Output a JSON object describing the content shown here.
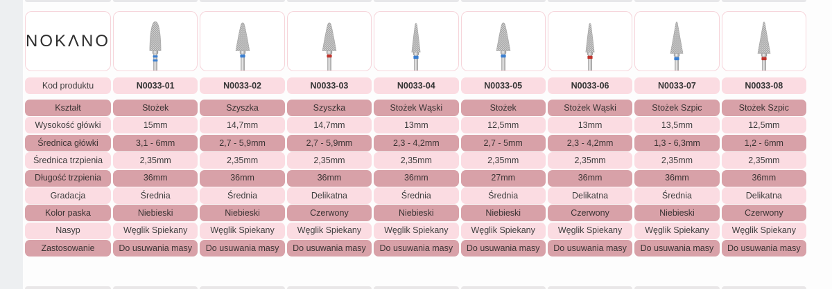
{
  "brand": {
    "logo_text": "NOKΛNO"
  },
  "colors": {
    "light_pink": "#fbdce2",
    "dark_pink": "#d8a1a8",
    "card_border": "#f6d4da",
    "band_blue": "#3a7fd1",
    "band_red": "#c0342c",
    "text": "#3e3e3e",
    "left_strip": "#edeff1",
    "background": "#fdfdfd"
  },
  "code_row": {
    "label": "Kod produktu"
  },
  "products": [
    {
      "code": "N0033-01",
      "bit_shape": "bullet",
      "band_color": "blue"
    },
    {
      "code": "N0033-02",
      "bit_shape": "cone",
      "band_color": "blue"
    },
    {
      "code": "N0033-03",
      "bit_shape": "cone",
      "band_color": "red"
    },
    {
      "code": "N0033-04",
      "bit_shape": "narrow",
      "band_color": "blue"
    },
    {
      "code": "N0033-05",
      "bit_shape": "cone",
      "band_color": "blue"
    },
    {
      "code": "N0033-06",
      "bit_shape": "narrow",
      "band_color": "red"
    },
    {
      "code": "N0033-07",
      "bit_shape": "spike",
      "band_color": "blue"
    },
    {
      "code": "N0033-08",
      "bit_shape": "spike",
      "band_color": "red"
    }
  ],
  "spec_rows": [
    {
      "label": "Kształt",
      "shade": "dark",
      "values": [
        "Stożek",
        "Szyszka",
        "Szyszka",
        "Stożek Wąski",
        "Stożek",
        "Stożek Wąski",
        "Stożek Szpic",
        "Stożek Szpic"
      ]
    },
    {
      "label": "Wysokość główki",
      "shade": "light",
      "values": [
        "15mm",
        "14,7mm",
        "14,7mm",
        "13mm",
        "12,5mm",
        "13mm",
        "13,5mm",
        "12,5mm"
      ]
    },
    {
      "label": "Średnica główki",
      "shade": "dark",
      "values": [
        "3,1 - 6mm",
        "2,7 - 5,9mm",
        "2,7 - 5,9mm",
        "2,3 - 4,2mm",
        "2,7 - 5mm",
        "2,3 - 4,2mm",
        "1,3 - 6,3mm",
        "1,2 - 6mm"
      ]
    },
    {
      "label": "Średnica trzpienia",
      "shade": "light",
      "values": [
        "2,35mm",
        "2,35mm",
        "2,35mm",
        "2,35mm",
        "2,35mm",
        "2,35mm",
        "2,35mm",
        "2,35mm"
      ]
    },
    {
      "label": "Długość trzpienia",
      "shade": "dark",
      "values": [
        "36mm",
        "36mm",
        "36mm",
        "36mm",
        "27mm",
        "36mm",
        "36mm",
        "36mm"
      ]
    },
    {
      "label": "Gradacja",
      "shade": "light",
      "values": [
        "Średnia",
        "Średnia",
        "Delikatna",
        "Średnia",
        "Średnia",
        "Delikatna",
        "Średnia",
        "Delikatna"
      ]
    },
    {
      "label": "Kolor paska",
      "shade": "dark",
      "values": [
        "Niebieski",
        "Niebieski",
        "Czerwony",
        "Niebieski",
        "Niebieski",
        "Czerwony",
        "Niebieski",
        "Czerwony"
      ]
    },
    {
      "label": "Nasyp",
      "shade": "light",
      "values": [
        "Węglik Spiekany",
        "Węglik Spiekany",
        "Węglik Spiekany",
        "Węglik Spiekany",
        "Węglik Spiekany",
        "Węglik Spiekany",
        "Węglik Spiekany",
        "Węglik Spiekany"
      ]
    },
    {
      "label": "Zastosowanie",
      "shade": "dark",
      "values": [
        "Do usuwania masy",
        "Do usuwania masy",
        "Do usuwania masy",
        "Do usuwania masy",
        "Do usuwania masy",
        "Do usuwania masy",
        "Do usuwania masy",
        "Do usuwania masy"
      ]
    }
  ]
}
